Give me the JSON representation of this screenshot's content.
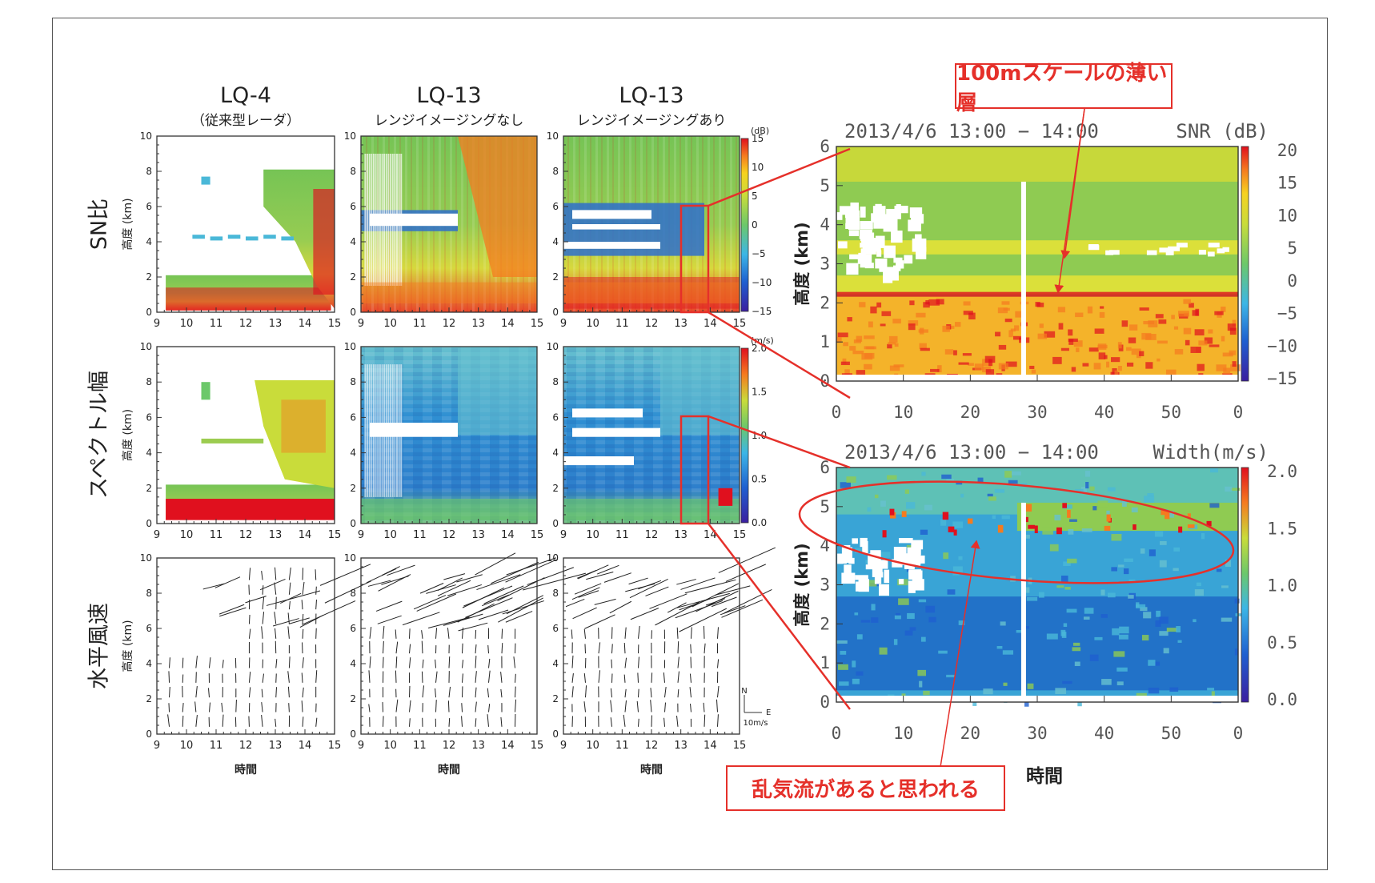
{
  "columns": [
    {
      "title": "LQ-4",
      "subtitle": "（従来型レーダ）"
    },
    {
      "title": "LQ-13",
      "subtitle": "レンジイメージングなし"
    },
    {
      "title": "LQ-13",
      "subtitle": "レンジイメージングあり"
    }
  ],
  "row_labels": [
    "SN比",
    "スペクトル幅",
    "水平風速"
  ],
  "small_axes": {
    "ylabel": "高度 (km)",
    "xlabel": "時間",
    "x_ticks": [
      "9",
      "10",
      "11",
      "12",
      "13",
      "14",
      "15"
    ],
    "y_ticks": [
      "0",
      "2",
      "4",
      "6",
      "8",
      "10"
    ]
  },
  "small_colorbars": {
    "snr": {
      "unit": "(dB)",
      "ticks": [
        "15",
        "10",
        "5",
        "0",
        "−5",
        "−10",
        "−15"
      ]
    },
    "width": {
      "unit": "(m/s)",
      "ticks": [
        "2.0",
        "1.5",
        "1.0",
        "0.5",
        "0.0"
      ]
    },
    "wind": {
      "north": "N",
      "east": "E",
      "scale": "10m/s"
    }
  },
  "zoom_panels": [
    {
      "title": "2013/4/6 13:00 − 14:00",
      "quantity": "SNR (dB)",
      "ylabel": "高度 (km)",
      "y_ticks": [
        "0",
        "1",
        "2",
        "3",
        "4",
        "5",
        "6"
      ],
      "x_ticks": [
        "0",
        "10",
        "20",
        "30",
        "40",
        "50",
        "0"
      ],
      "cb_ticks": [
        "20",
        "15",
        "10",
        "5",
        "0",
        "−5",
        "−10",
        "−15"
      ]
    },
    {
      "title": "2013/4/6 13:00 − 14:00",
      "quantity": "Width(m/s)",
      "ylabel": "高度 (km)",
      "y_ticks": [
        "0",
        "1",
        "2",
        "3",
        "4",
        "5",
        "6"
      ],
      "x_ticks": [
        "0",
        "10",
        "20",
        "30",
        "40",
        "50",
        "0"
      ],
      "cb_ticks": [
        "2.0",
        "1.5",
        "1.0",
        "0.5",
        "0.0"
      ]
    }
  ],
  "zoom_xlabel": "時間",
  "annotations": {
    "thin_layer": "100mスケールの薄い層",
    "turbulence": "乱気流があると思われる"
  },
  "colors": {
    "accent": "#e5302a",
    "frame": "#555555"
  },
  "chart_data": [
    {
      "type": "heatmap",
      "title": "LQ-4 （従来型レーダ）",
      "row": "SN比",
      "xlabel": "時間",
      "ylabel": "高度 (km)",
      "xlim": [
        9,
        15
      ],
      "ylim": [
        0,
        10
      ],
      "colorbar": {
        "label": "(dB)",
        "range": [
          -15,
          15
        ]
      }
    },
    {
      "type": "heatmap",
      "title": "LQ-13 レンジイメージングなし",
      "row": "SN比",
      "xlabel": "時間",
      "ylabel": "高度 (km)",
      "xlim": [
        9,
        15
      ],
      "ylim": [
        0,
        10
      ],
      "colorbar": {
        "label": "(dB)",
        "range": [
          -15,
          15
        ]
      }
    },
    {
      "type": "heatmap",
      "title": "LQ-13 レンジイメージングあり",
      "row": "SN比",
      "xlabel": "時間",
      "ylabel": "高度 (km)",
      "xlim": [
        9,
        15
      ],
      "ylim": [
        0,
        10
      ],
      "colorbar": {
        "label": "(dB)",
        "range": [
          -15,
          15
        ]
      }
    },
    {
      "type": "heatmap",
      "row": "スペクトル幅",
      "xlabel": "時間",
      "ylabel": "高度 (km)",
      "xlim": [
        9,
        15
      ],
      "ylim": [
        0,
        10
      ],
      "colorbar": {
        "label": "(m/s)",
        "range": [
          0.0,
          2.0
        ]
      }
    },
    {
      "type": "heatmap",
      "title": "2013/4/6 13:00 − 14:00 SNR (dB)",
      "xlabel": "時間",
      "ylabel": "高度 (km)",
      "xlim": [
        0,
        60
      ],
      "ylim": [
        0,
        6
      ],
      "colorbar": {
        "range": [
          -15,
          20
        ]
      },
      "features": [
        {
          "label": "100mスケールの薄い層",
          "approx_height_km": [
            2.3,
            2.9
          ]
        }
      ]
    },
    {
      "type": "heatmap",
      "title": "2013/4/6 13:00 − 14:00 Width(m/s)",
      "xlabel": "時間",
      "ylabel": "高度 (km)",
      "xlim": [
        0,
        60
      ],
      "ylim": [
        0,
        6
      ],
      "colorbar": {
        "range": [
          0.0,
          2.0
        ]
      },
      "features": [
        {
          "label": "乱気流があると思われる",
          "approx_height_km": [
            4.0,
            5.5
          ]
        }
      ]
    },
    {
      "type": "scatter",
      "row": "水平風速",
      "xlabel": "時間",
      "ylabel": "高度 (km)",
      "xlim": [
        9,
        15
      ],
      "ylim": [
        0,
        10
      ],
      "scale_arrow": "10m/s"
    }
  ]
}
